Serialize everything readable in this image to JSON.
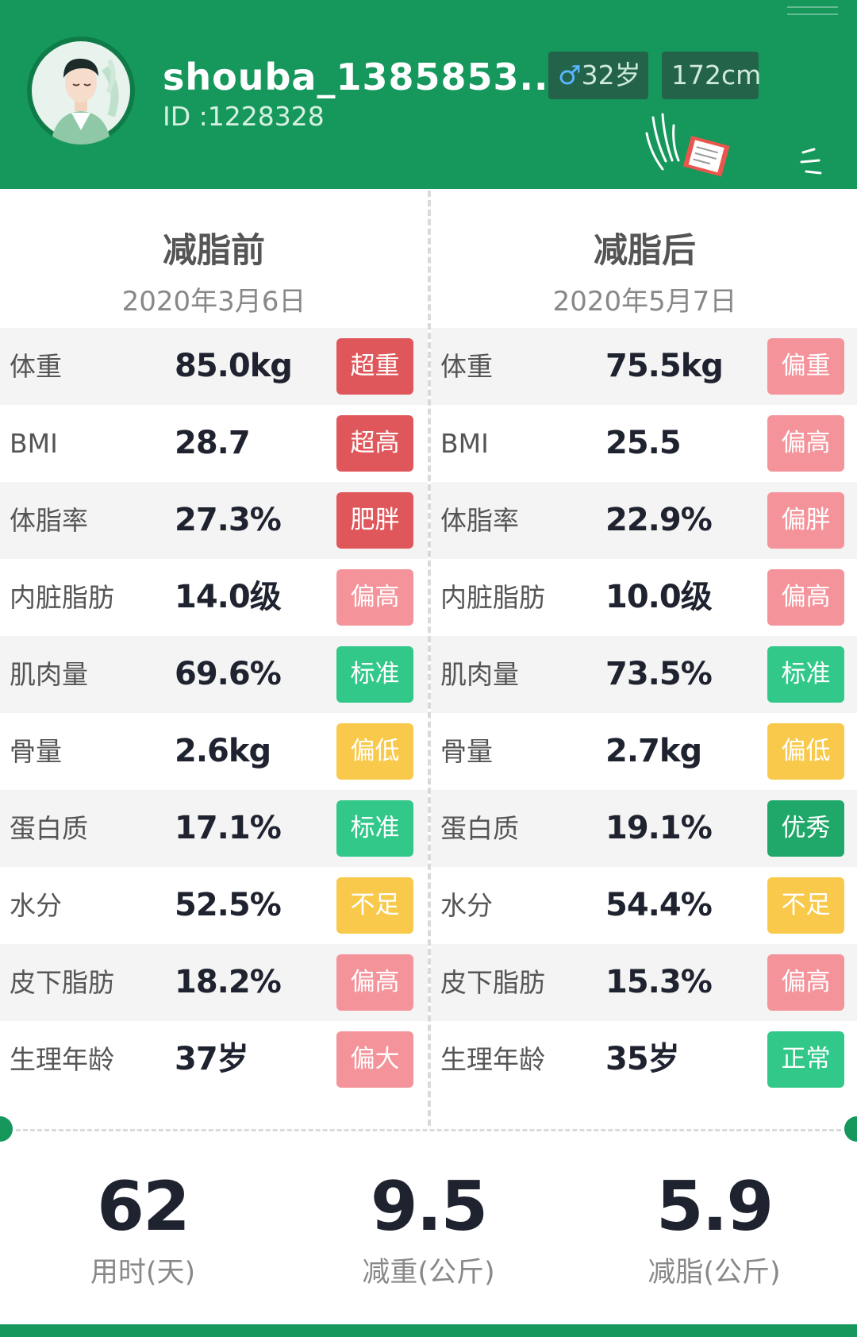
{
  "profile": {
    "username": "shouba_1385853...",
    "user_id": "ID :1228328",
    "gender_symbol": "♂",
    "age": "32岁",
    "height": "172cm"
  },
  "before": {
    "title": "减脂前",
    "date": "2020年3月6日",
    "metrics": [
      {
        "label": "体重",
        "value": "85.0kg",
        "status": "超重",
        "status_color": "#e0575b"
      },
      {
        "label": "BMI",
        "value": "28.7",
        "status": "超高",
        "status_color": "#e0575b"
      },
      {
        "label": "体脂率",
        "value": "27.3%",
        "status": "肥胖",
        "status_color": "#e0575b"
      },
      {
        "label": "内脏脂肪",
        "value": "14.0级",
        "status": "偏高",
        "status_color": "#f4939a"
      },
      {
        "label": "肌肉量",
        "value": "69.6%",
        "status": "标准",
        "status_color": "#31c889"
      },
      {
        "label": "骨量",
        "value": "2.6kg",
        "status": "偏低",
        "status_color": "#f8c94a"
      },
      {
        "label": "蛋白质",
        "value": "17.1%",
        "status": "标准",
        "status_color": "#31c889"
      },
      {
        "label": "水分",
        "value": "52.5%",
        "status": "不足",
        "status_color": "#f8c94a"
      },
      {
        "label": "皮下脂肪",
        "value": "18.2%",
        "status": "偏高",
        "status_color": "#f4939a"
      },
      {
        "label": "生理年龄",
        "value": "37岁",
        "status": "偏大",
        "status_color": "#f4939a"
      }
    ]
  },
  "after": {
    "title": "减脂后",
    "date": "2020年5月7日",
    "metrics": [
      {
        "label": "体重",
        "value": "75.5kg",
        "status": "偏重",
        "status_color": "#f4939a"
      },
      {
        "label": "BMI",
        "value": "25.5",
        "status": "偏高",
        "status_color": "#f4939a"
      },
      {
        "label": "体脂率",
        "value": "22.9%",
        "status": "偏胖",
        "status_color": "#f4939a"
      },
      {
        "label": "内脏脂肪",
        "value": "10.0级",
        "status": "偏高",
        "status_color": "#f4939a"
      },
      {
        "label": "肌肉量",
        "value": "73.5%",
        "status": "标准",
        "status_color": "#31c889"
      },
      {
        "label": "骨量",
        "value": "2.7kg",
        "status": "偏低",
        "status_color": "#f8c94a"
      },
      {
        "label": "蛋白质",
        "value": "19.1%",
        "status": "优秀",
        "status_color": "#1fa86a"
      },
      {
        "label": "水分",
        "value": "54.4%",
        "status": "不足",
        "status_color": "#f8c94a"
      },
      {
        "label": "皮下脂肪",
        "value": "15.3%",
        "status": "偏高",
        "status_color": "#f4939a"
      },
      {
        "label": "生理年龄",
        "value": "35岁",
        "status": "正常",
        "status_color": "#31c889"
      }
    ]
  },
  "summary": [
    {
      "value": "62",
      "caption": "用时(天)"
    },
    {
      "value": "9.5",
      "caption": "减重(公斤)"
    },
    {
      "value": "5.9",
      "caption": "减脂(公斤)"
    }
  ],
  "colors": {
    "brand_green": "#16985c",
    "status_red": "#e0575b",
    "status_pink": "#f4939a",
    "status_green": "#31c889",
    "status_dark_green": "#1fa86a",
    "status_yellow": "#f8c94a"
  }
}
